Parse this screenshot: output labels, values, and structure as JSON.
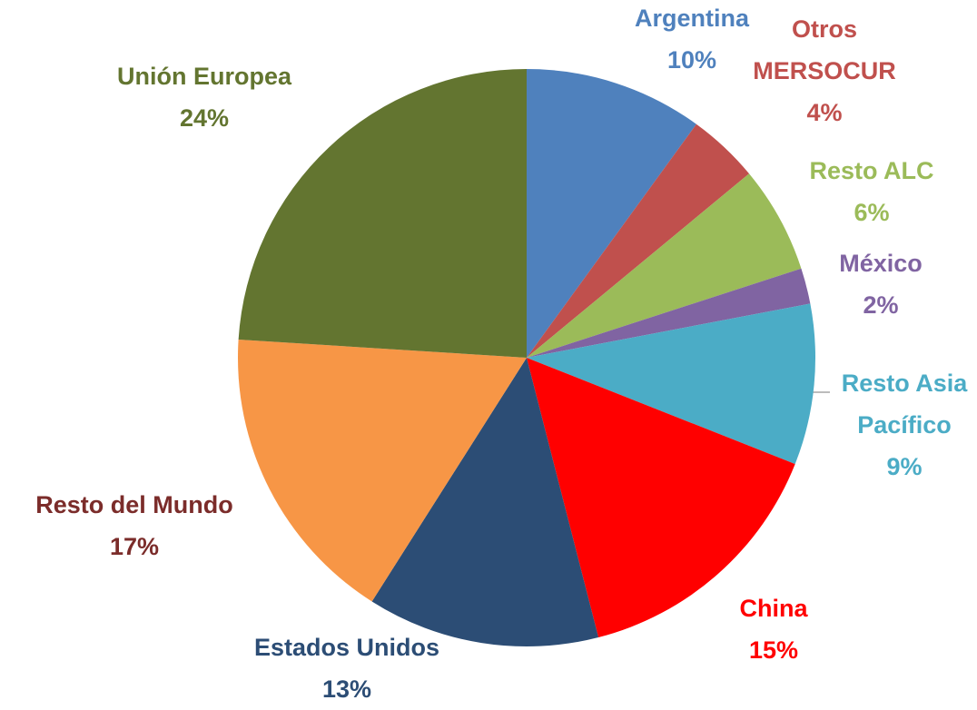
{
  "chart_data": {
    "type": "pie",
    "categories": [
      "Argentina",
      "Otros MERSOCUR",
      "Resto ALC",
      "México",
      "Resto Asia Pacífico",
      "China",
      "Estados Unidos",
      "Resto del Mundo",
      "Unión Europea"
    ],
    "values": [
      10,
      4,
      6,
      2,
      9,
      15,
      13,
      17,
      24
    ],
    "value_labels": [
      "10%",
      "4%",
      "6%",
      "2%",
      "9%",
      "15%",
      "13%",
      "17%",
      "24%"
    ],
    "colors": [
      "#4f81bd",
      "#c0504d",
      "#9bbb59",
      "#8064a2",
      "#4bacc6",
      "#ff0000",
      "#2c4d75",
      "#f79646",
      "#637530"
    ],
    "label_colors": [
      "#4f81bd",
      "#c0504d",
      "#9bbb59",
      "#8064a2",
      "#4bacc6",
      "#ff0000",
      "#2c4d75",
      "#7b2c2a",
      "#637530"
    ]
  }
}
